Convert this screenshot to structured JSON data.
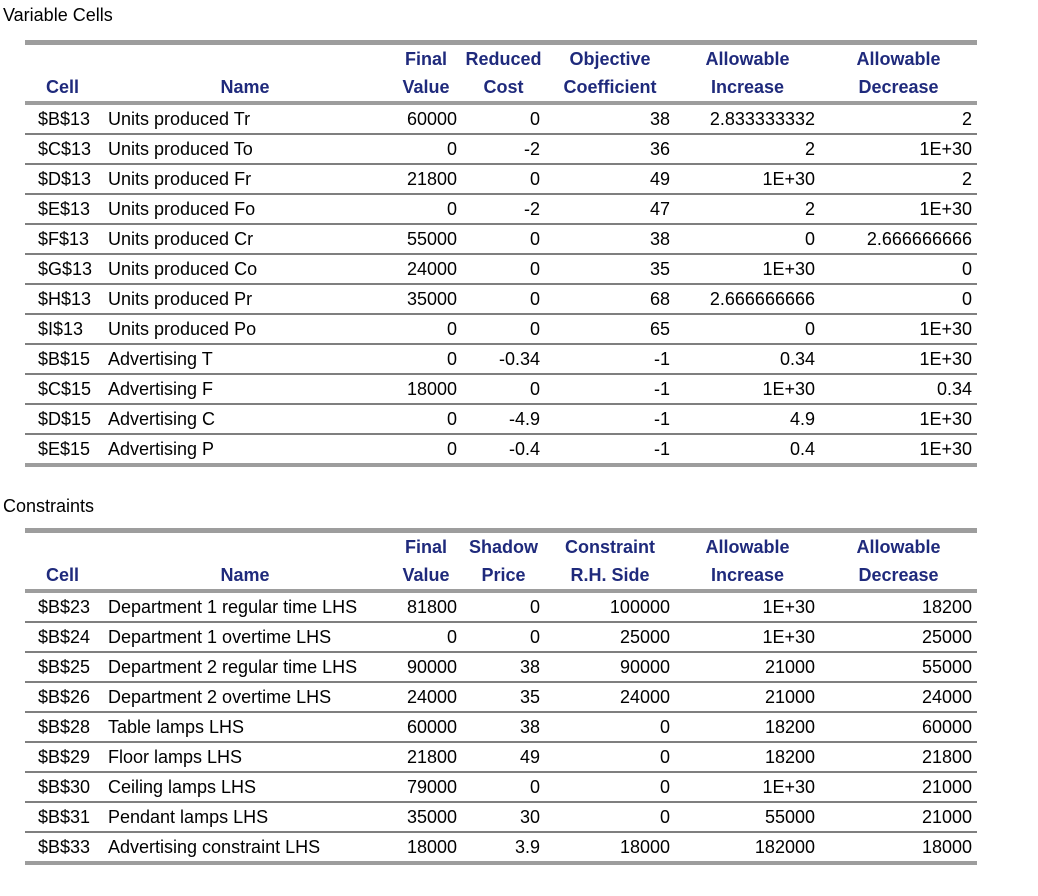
{
  "report": {
    "colors": {
      "header_text": "#1f2a7c",
      "thick_line": "#9d9d9d",
      "thin_line": "#7f7f7f",
      "body_text": "#000000"
    },
    "variable_cells": {
      "title": "Variable Cells",
      "header_row1": [
        "",
        "",
        "Final",
        "Reduced",
        "Objective",
        "Allowable",
        "Allowable"
      ],
      "header_row2": [
        "Cell",
        "Name",
        "Value",
        "Cost",
        "Coefficient",
        "Increase",
        "Decrease"
      ],
      "rows": [
        {
          "cell": "$B$13",
          "name": "Units produced Tr",
          "final_value": "60000",
          "reduced_cost": "0",
          "objective_coefficient": "38",
          "allowable_increase": "2.833333332",
          "allowable_decrease": "2"
        },
        {
          "cell": "$C$13",
          "name": "Units produced To",
          "final_value": "0",
          "reduced_cost": "-2",
          "objective_coefficient": "36",
          "allowable_increase": "2",
          "allowable_decrease": "1E+30"
        },
        {
          "cell": "$D$13",
          "name": "Units produced Fr",
          "final_value": "21800",
          "reduced_cost": "0",
          "objective_coefficient": "49",
          "allowable_increase": "1E+30",
          "allowable_decrease": "2"
        },
        {
          "cell": "$E$13",
          "name": "Units produced Fo",
          "final_value": "0",
          "reduced_cost": "-2",
          "objective_coefficient": "47",
          "allowable_increase": "2",
          "allowable_decrease": "1E+30"
        },
        {
          "cell": "$F$13",
          "name": "Units produced Cr",
          "final_value": "55000",
          "reduced_cost": "0",
          "objective_coefficient": "38",
          "allowable_increase": "0",
          "allowable_decrease": "2.666666666"
        },
        {
          "cell": "$G$13",
          "name": "Units produced Co",
          "final_value": "24000",
          "reduced_cost": "0",
          "objective_coefficient": "35",
          "allowable_increase": "1E+30",
          "allowable_decrease": "0"
        },
        {
          "cell": "$H$13",
          "name": "Units produced Pr",
          "final_value": "35000",
          "reduced_cost": "0",
          "objective_coefficient": "68",
          "allowable_increase": "2.666666666",
          "allowable_decrease": "0"
        },
        {
          "cell": "$I$13",
          "name": "Units produced Po",
          "final_value": "0",
          "reduced_cost": "0",
          "objective_coefficient": "65",
          "allowable_increase": "0",
          "allowable_decrease": "1E+30"
        },
        {
          "cell": "$B$15",
          "name": "Advertising T",
          "final_value": "0",
          "reduced_cost": "-0.34",
          "objective_coefficient": "-1",
          "allowable_increase": "0.34",
          "allowable_decrease": "1E+30"
        },
        {
          "cell": "$C$15",
          "name": "Advertising F",
          "final_value": "18000",
          "reduced_cost": "0",
          "objective_coefficient": "-1",
          "allowable_increase": "1E+30",
          "allowable_decrease": "0.34"
        },
        {
          "cell": "$D$15",
          "name": "Advertising C",
          "final_value": "0",
          "reduced_cost": "-4.9",
          "objective_coefficient": "-1",
          "allowable_increase": "4.9",
          "allowable_decrease": "1E+30"
        },
        {
          "cell": "$E$15",
          "name": "Advertising P",
          "final_value": "0",
          "reduced_cost": "-0.4",
          "objective_coefficient": "-1",
          "allowable_increase": "0.4",
          "allowable_decrease": "1E+30"
        }
      ]
    },
    "constraints": {
      "title": "Constraints",
      "header_row1": [
        "",
        "",
        "Final",
        "Shadow",
        "Constraint",
        "Allowable",
        "Allowable"
      ],
      "header_row2": [
        "Cell",
        "Name",
        "Value",
        "Price",
        "R.H. Side",
        "Increase",
        "Decrease"
      ],
      "rows": [
        {
          "cell": "$B$23",
          "name": "Department 1 regular time LHS",
          "final_value": "81800",
          "shadow_price": "0",
          "constraint_rhs": "100000",
          "allowable_increase": "1E+30",
          "allowable_decrease": "18200"
        },
        {
          "cell": "$B$24",
          "name": "Department 1 overtime LHS",
          "final_value": "0",
          "shadow_price": "0",
          "constraint_rhs": "25000",
          "allowable_increase": "1E+30",
          "allowable_decrease": "25000"
        },
        {
          "cell": "$B$25",
          "name": "Department 2 regular time LHS",
          "final_value": "90000",
          "shadow_price": "38",
          "constraint_rhs": "90000",
          "allowable_increase": "21000",
          "allowable_decrease": "55000"
        },
        {
          "cell": "$B$26",
          "name": "Department 2 overtime LHS",
          "final_value": "24000",
          "shadow_price": "35",
          "constraint_rhs": "24000",
          "allowable_increase": "21000",
          "allowable_decrease": "24000"
        },
        {
          "cell": "$B$28",
          "name": "Table lamps LHS",
          "final_value": "60000",
          "shadow_price": "38",
          "constraint_rhs": "0",
          "allowable_increase": "18200",
          "allowable_decrease": "60000"
        },
        {
          "cell": "$B$29",
          "name": "Floor lamps LHS",
          "final_value": "21800",
          "shadow_price": "49",
          "constraint_rhs": "0",
          "allowable_increase": "18200",
          "allowable_decrease": "21800"
        },
        {
          "cell": "$B$30",
          "name": "Ceiling lamps LHS",
          "final_value": "79000",
          "shadow_price": "0",
          "constraint_rhs": "0",
          "allowable_increase": "1E+30",
          "allowable_decrease": "21000"
        },
        {
          "cell": "$B$31",
          "name": "Pendant lamps LHS",
          "final_value": "35000",
          "shadow_price": "30",
          "constraint_rhs": "0",
          "allowable_increase": "55000",
          "allowable_decrease": "21000"
        },
        {
          "cell": "$B$33",
          "name": "Advertising constraint LHS",
          "final_value": "18000",
          "shadow_price": "3.9",
          "constraint_rhs": "18000",
          "allowable_increase": "182000",
          "allowable_decrease": "18000"
        }
      ]
    }
  }
}
